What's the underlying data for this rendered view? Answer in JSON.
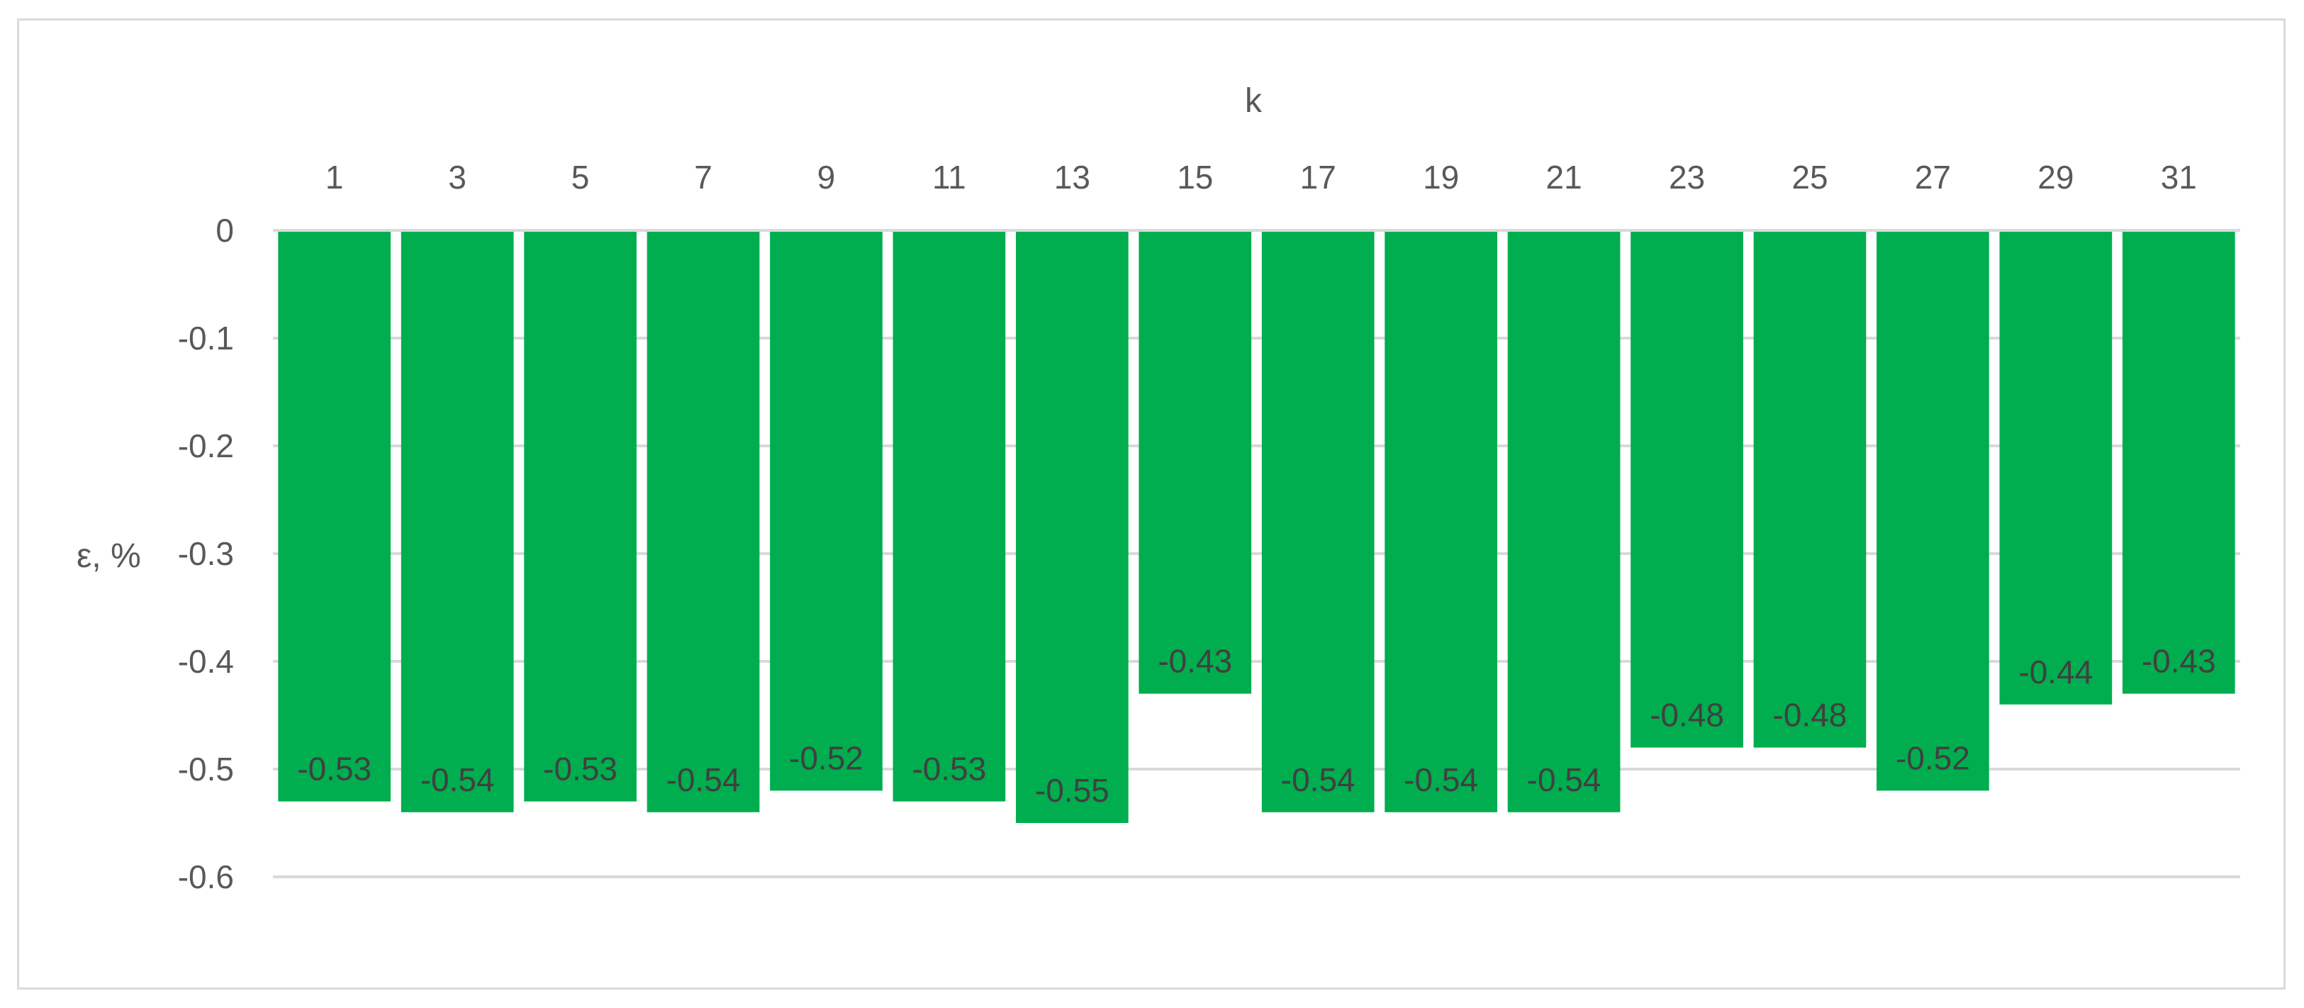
{
  "chart_data": {
    "type": "bar",
    "orientation": "vertical",
    "x_axis_position": "top",
    "xlabel": "k",
    "ylabel": "ε, %",
    "categories": [
      "1",
      "3",
      "5",
      "7",
      "9",
      "11",
      "13",
      "15",
      "17",
      "19",
      "21",
      "23",
      "25",
      "27",
      "29",
      "31"
    ],
    "values": [
      -0.53,
      -0.54,
      -0.53,
      -0.54,
      -0.52,
      -0.53,
      -0.55,
      -0.43,
      -0.54,
      -0.54,
      -0.54,
      -0.48,
      -0.48,
      -0.52,
      -0.44,
      -0.43
    ],
    "data_labels": [
      "-0.53",
      "-0.54",
      "-0.53",
      "-0.54",
      "-0.52",
      "-0.53",
      "-0.55",
      "-0.43",
      "-0.54",
      "-0.54",
      "-0.54",
      "-0.48",
      "-0.48",
      "-0.52",
      "-0.44",
      "-0.43"
    ],
    "ylim": [
      -0.6,
      0
    ],
    "yticks": [
      0,
      -0.1,
      -0.2,
      -0.3,
      -0.4,
      -0.5,
      -0.6
    ],
    "ytick_labels": [
      "0",
      "-0.1",
      "-0.2",
      "-0.3",
      "-0.4",
      "-0.5",
      "-0.6"
    ],
    "grid": true,
    "legend": false,
    "bar_color": "#00AD4F",
    "grid_color": "#D9D9D9",
    "text_color": "#595959"
  }
}
